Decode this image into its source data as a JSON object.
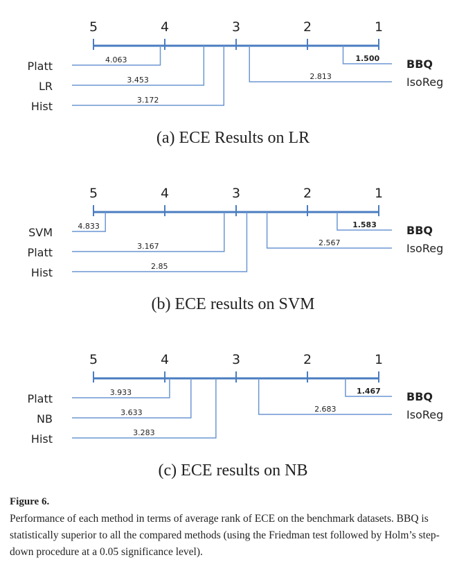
{
  "chart_data": [
    {
      "type": "cd-diagram",
      "caption": "(a) ECE Results on LR",
      "axis": {
        "range": [
          5,
          1
        ],
        "ticks": [
          "5",
          "4",
          "3",
          "2",
          "1"
        ]
      },
      "left": [
        {
          "name": "Platt",
          "rank": 4.063,
          "label": "4.063"
        },
        {
          "name": "LR",
          "rank": 3.453,
          "label": "3.453"
        },
        {
          "name": "Hist",
          "rank": 3.172,
          "label": "3.172"
        }
      ],
      "right": [
        {
          "name": "BBQ",
          "rank": 1.5,
          "label": "1.500",
          "bold": true
        },
        {
          "name": "IsoReg",
          "rank": 2.813,
          "label": "2.813"
        }
      ]
    },
    {
      "type": "cd-diagram",
      "caption": "(b) ECE results on SVM",
      "axis": {
        "range": [
          5,
          1
        ],
        "ticks": [
          "5",
          "4",
          "3",
          "2",
          "1"
        ]
      },
      "left": [
        {
          "name": "SVM",
          "rank": 4.833,
          "label": "4.833"
        },
        {
          "name": "Platt",
          "rank": 3.167,
          "label": "3.167"
        },
        {
          "name": "Hist",
          "rank": 2.85,
          "label": "2.85"
        }
      ],
      "right": [
        {
          "name": "BBQ",
          "rank": 1.583,
          "label": "1.583",
          "bold": true
        },
        {
          "name": "IsoReg",
          "rank": 2.567,
          "label": "2.567"
        }
      ]
    },
    {
      "type": "cd-diagram",
      "caption": "(c) ECE results on NB",
      "axis": {
        "range": [
          5,
          1
        ],
        "ticks": [
          "5",
          "4",
          "3",
          "2",
          "1"
        ]
      },
      "left": [
        {
          "name": "Platt",
          "rank": 3.933,
          "label": "3.933"
        },
        {
          "name": "NB",
          "rank": 3.633,
          "label": "3.633"
        },
        {
          "name": "Hist",
          "rank": 3.283,
          "label": "3.283"
        }
      ],
      "right": [
        {
          "name": "BBQ",
          "rank": 1.467,
          "label": "1.467",
          "bold": true
        },
        {
          "name": "IsoReg",
          "rank": 2.683,
          "label": "2.683"
        }
      ]
    }
  ],
  "colors": {
    "axis": "#4a7cc0",
    "connector": "#6b96d2",
    "text": "#222222"
  },
  "figure": {
    "label": "Figure 6.",
    "text": "Performance of each method in terms of average rank of ECE on the benchmark datasets. BBQ is statistically superior to all the compared methods (using the Friedman test followed by Holm’s step-down procedure at a 0.05 significance level)."
  }
}
